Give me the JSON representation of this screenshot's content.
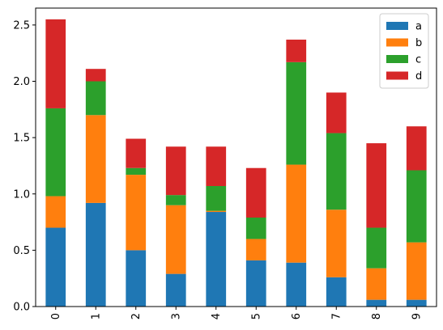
{
  "chart_data": {
    "type": "bar",
    "stacked": true,
    "categories": [
      "0",
      "1",
      "2",
      "3",
      "4",
      "5",
      "6",
      "7",
      "8",
      "9"
    ],
    "series": [
      {
        "name": "a",
        "color": "#1f77b4",
        "values": [
          0.7,
          0.92,
          0.5,
          0.29,
          0.84,
          0.41,
          0.39,
          0.26,
          0.06,
          0.06
        ]
      },
      {
        "name": "b",
        "color": "#ff7f0e",
        "values": [
          0.28,
          0.78,
          0.67,
          0.61,
          0.01,
          0.19,
          0.87,
          0.6,
          0.28,
          0.51
        ]
      },
      {
        "name": "c",
        "color": "#2ca02c",
        "values": [
          0.78,
          0.3,
          0.06,
          0.09,
          0.22,
          0.19,
          0.91,
          0.68,
          0.36,
          0.64
        ]
      },
      {
        "name": "d",
        "color": "#d62728",
        "values": [
          0.79,
          0.11,
          0.26,
          0.43,
          0.35,
          0.44,
          0.2,
          0.36,
          0.75,
          0.39
        ]
      }
    ],
    "title": "",
    "xlabel": "",
    "ylabel": "",
    "ylim": [
      0,
      2.65
    ],
    "yticks": [
      0.0,
      0.5,
      1.0,
      1.5,
      2.0,
      2.5
    ],
    "ytick_labels": [
      "0.0",
      "0.5",
      "1.0",
      "1.5",
      "2.0",
      "2.5"
    ],
    "xtick_rotation": "vertical",
    "legend_position": "top-right",
    "grid": false
  }
}
